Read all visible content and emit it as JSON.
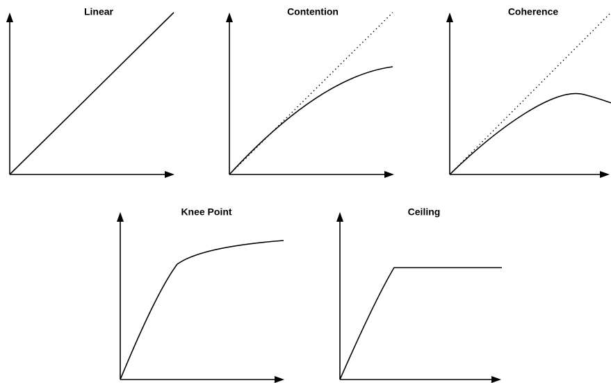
{
  "panels": [
    {
      "title": "Linear"
    },
    {
      "title": "Contention"
    },
    {
      "title": "Coherence"
    },
    {
      "title": "Knee Point"
    },
    {
      "title": "Ceiling"
    }
  ]
}
